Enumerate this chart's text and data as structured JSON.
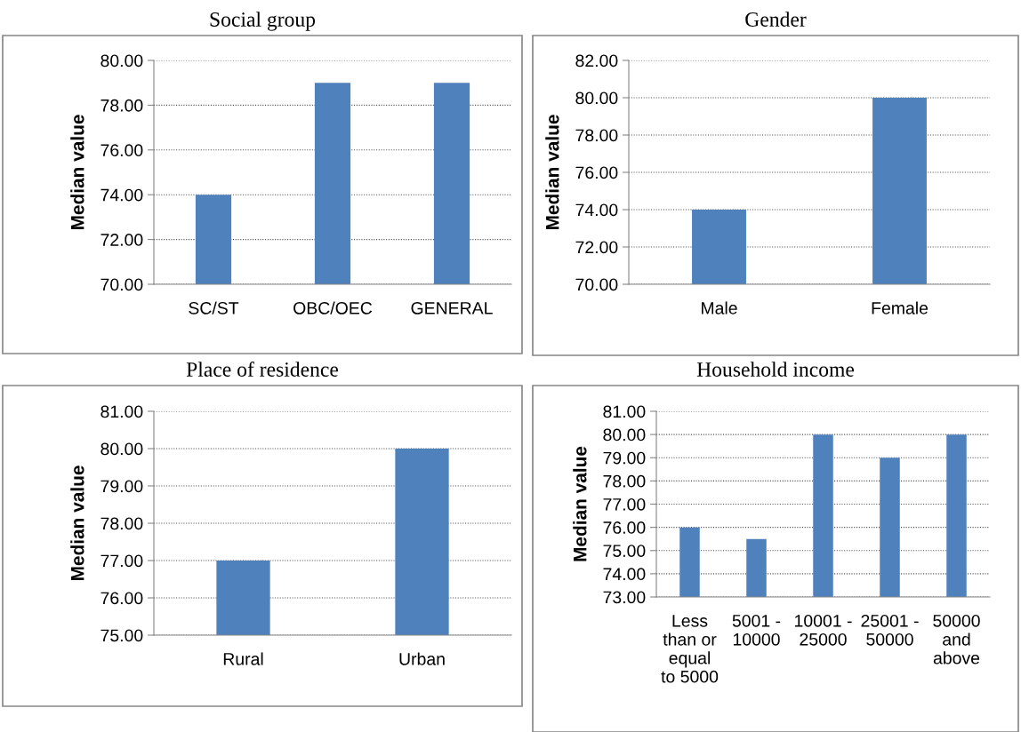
{
  "chart_data": [
    {
      "type": "bar",
      "title": "Social group",
      "ylabel": "Median value",
      "categories": [
        "SC/ST",
        "OBC/OEC",
        "GENERAL"
      ],
      "values": [
        74,
        79,
        79
      ],
      "color": "#4f81bd",
      "ylim": [
        70,
        80
      ],
      "yticks": [
        {
          "value": 70,
          "label": "70.00"
        },
        {
          "value": 72,
          "label": "72.00"
        },
        {
          "value": 74,
          "label": "74.00"
        },
        {
          "value": 76,
          "label": "76.00"
        },
        {
          "value": 78,
          "label": "78.00"
        },
        {
          "value": 80,
          "label": "80.00"
        }
      ],
      "grid": "y",
      "legend": false
    },
    {
      "type": "bar",
      "title": "Gender",
      "ylabel": "Median value",
      "categories": [
        "Male",
        "Female"
      ],
      "values": [
        74,
        80
      ],
      "color": "#4f81bd",
      "ylim": [
        70,
        82
      ],
      "yticks": [
        {
          "value": 70,
          "label": "70.00"
        },
        {
          "value": 72,
          "label": "72.00"
        },
        {
          "value": 74,
          "label": "74.00"
        },
        {
          "value": 76,
          "label": "76.00"
        },
        {
          "value": 78,
          "label": "78.00"
        },
        {
          "value": 80,
          "label": "80.00"
        },
        {
          "value": 82,
          "label": "82.00"
        }
      ],
      "grid": "y",
      "legend": false
    },
    {
      "type": "bar",
      "title": "Place of residence",
      "ylabel": "Median value",
      "categories": [
        "Rural",
        "Urban"
      ],
      "values": [
        77,
        80
      ],
      "color": "#4f81bd",
      "ylim": [
        75,
        81
      ],
      "yticks": [
        {
          "value": 75,
          "label": "75.00"
        },
        {
          "value": 76,
          "label": "76.00"
        },
        {
          "value": 77,
          "label": "77.00"
        },
        {
          "value": 78,
          "label": "78.00"
        },
        {
          "value": 79,
          "label": "79.00"
        },
        {
          "value": 80,
          "label": "80.00"
        },
        {
          "value": 81,
          "label": "81.00"
        }
      ],
      "grid": "y",
      "legend": false
    },
    {
      "type": "bar",
      "title": "Household income",
      "ylabel": "Median value",
      "categories": [
        "Less\nthan or\nequal\nto 5000",
        "5001 -\n10000",
        "10001 -\n25000",
        "25001 -\n50000",
        "50000\nand\nabove"
      ],
      "values": [
        76,
        75.5,
        80,
        79,
        80
      ],
      "color": "#4f81bd",
      "ylim": [
        73,
        81
      ],
      "yticks": [
        {
          "value": 73,
          "label": "73.00"
        },
        {
          "value": 74,
          "label": "74.00"
        },
        {
          "value": 75,
          "label": "75.00"
        },
        {
          "value": 76,
          "label": "76.00"
        },
        {
          "value": 77,
          "label": "77.00"
        },
        {
          "value": 78,
          "label": "78.00"
        },
        {
          "value": 79,
          "label": "79.00"
        },
        {
          "value": 80,
          "label": "80.00"
        },
        {
          "value": 81,
          "label": "81.00"
        }
      ],
      "grid": "y",
      "legend": false
    }
  ]
}
